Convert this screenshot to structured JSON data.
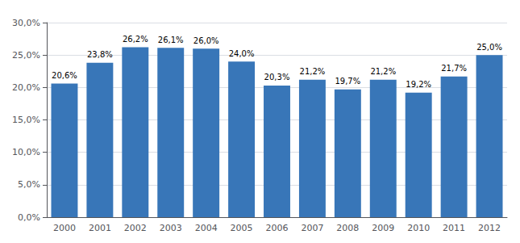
{
  "chart_data": {
    "type": "bar",
    "categories": [
      "2000",
      "2001",
      "2002",
      "2003",
      "2004",
      "2005",
      "2006",
      "2007",
      "2008",
      "2009",
      "2010",
      "2011",
      "2012"
    ],
    "values": [
      0.206,
      0.238,
      0.262,
      0.261,
      0.26,
      0.24,
      0.203,
      0.212,
      0.197,
      0.212,
      0.192,
      0.217,
      0.25
    ],
    "value_labels": [
      "20,6%",
      "23,8%",
      "26,2%",
      "26,1%",
      "26,0%",
      "24,0%",
      "20,3%",
      "21,2%",
      "19,7%",
      "21,2%",
      "19,2%",
      "21,7%",
      "25,0%"
    ],
    "data_labels": true,
    "color": "#3876B8",
    "ylim": [
      0.0,
      0.3
    ],
    "yticks": [
      {
        "value": 0.0,
        "label": "0,0%"
      },
      {
        "value": 0.05,
        "label": "5,0%"
      },
      {
        "value": 0.1,
        "label": "10,0%"
      },
      {
        "value": 0.15,
        "label": "15,0%"
      },
      {
        "value": 0.2,
        "label": "20,0%"
      },
      {
        "value": 0.25,
        "label": "25,0%"
      },
      {
        "value": 0.3,
        "label": "30,0%"
      }
    ],
    "grid": true
  }
}
